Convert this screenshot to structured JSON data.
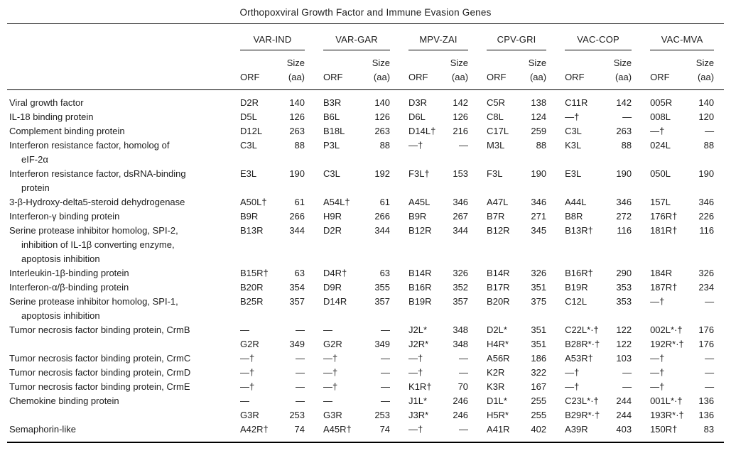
{
  "title": "Orthopoxviral Growth Factor and Immune Evasion Genes",
  "table": {
    "groups": [
      "VAR-IND",
      "VAR-GAR",
      "MPV-ZAI",
      "CPV-GRI",
      "VAC-COP",
      "VAC-MVA"
    ],
    "subheader": {
      "orf": "ORF",
      "size_line1": "Size",
      "size_line2": "(aa)"
    },
    "rows": [
      {
        "label_lines": [
          "Viral growth factor"
        ],
        "cells": [
          "D2R",
          "140",
          "B3R",
          "140",
          "D3R",
          "142",
          "C5R",
          "138",
          "C11R",
          "142",
          "005R",
          "140"
        ]
      },
      {
        "label_lines": [
          "IL-18 binding protein"
        ],
        "cells": [
          "D5L",
          "126",
          "B6L",
          "126",
          "D6L",
          "126",
          "C8L",
          "124",
          "—†",
          "—",
          "008L",
          "120"
        ]
      },
      {
        "label_lines": [
          "Complement binding protein"
        ],
        "cells": [
          "D12L",
          "263",
          "B18L",
          "263",
          "D14L†",
          "216",
          "C17L",
          "259",
          "C3L",
          "263",
          "—†",
          "—"
        ]
      },
      {
        "label_lines": [
          "Interferon resistance factor, homolog of",
          "eIF-2α"
        ],
        "cells": [
          "C3L",
          "88",
          "P3L",
          "88",
          "—†",
          "—",
          "M3L",
          "88",
          "K3L",
          "88",
          "024L",
          "88"
        ]
      },
      {
        "label_lines": [
          "Interferon resistance factor, dsRNA-binding",
          "protein"
        ],
        "cells": [
          "E3L",
          "190",
          "C3L",
          "192",
          "F3L†",
          "153",
          "F3L",
          "190",
          "E3L",
          "190",
          "050L",
          "190"
        ]
      },
      {
        "label_lines": [
          "3-β-Hydroxy-delta5-steroid dehydrogenase"
        ],
        "cells": [
          "A50L†",
          "61",
          "A54L†",
          "61",
          "A45L",
          "346",
          "A47L",
          "346",
          "A44L",
          "346",
          "157L",
          "346"
        ]
      },
      {
        "label_lines": [
          "Interferon-γ binding protein"
        ],
        "cells": [
          "B9R",
          "266",
          "H9R",
          "266",
          "B9R",
          "267",
          "B7R",
          "271",
          "B8R",
          "272",
          "176R†",
          "226"
        ]
      },
      {
        "label_lines": [
          "Serine protease inhibitor homolog, SPI-2,",
          "inhibition of IL-1β converting enzyme,",
          "apoptosis inhibition"
        ],
        "cells": [
          "B13R",
          "344",
          "D2R",
          "344",
          "B12R",
          "344",
          "B12R",
          "345",
          "B13R†",
          "116",
          "181R†",
          "116"
        ]
      },
      {
        "label_lines": [
          "Interleukin-1β-binding protein"
        ],
        "cells": [
          "B15R†",
          "63",
          "D4R†",
          "63",
          "B14R",
          "326",
          "B14R",
          "326",
          "B16R†",
          "290",
          "184R",
          "326"
        ]
      },
      {
        "label_lines": [
          "Interferon-α/β-binding protein"
        ],
        "cells": [
          "B20R",
          "354",
          "D9R",
          "355",
          "B16R",
          "352",
          "B17R",
          "351",
          "B19R",
          "353",
          "187R†",
          "234"
        ]
      },
      {
        "label_lines": [
          "Serine protease inhibitor homolog, SPI-1,",
          "apoptosis inhibition"
        ],
        "cells": [
          "B25R",
          "357",
          "D14R",
          "357",
          "B19R",
          "357",
          "B20R",
          "375",
          "C12L",
          "353",
          "—†",
          "—"
        ]
      },
      {
        "label_lines": [
          "Tumor necrosis factor binding protein, CrmB"
        ],
        "cells": [
          "—",
          "—",
          "—",
          "—",
          "J2L*",
          "348",
          "D2L*",
          "351",
          "C22L*·†",
          "122",
          "002L*·†",
          "176"
        ]
      },
      {
        "label_lines": [
          ""
        ],
        "cells": [
          "G2R",
          "349",
          "G2R",
          "349",
          "J2R*",
          "348",
          "H4R*",
          "351",
          "B28R*·†",
          "122",
          "192R*·†",
          "176"
        ]
      },
      {
        "label_lines": [
          "Tumor necrosis factor binding protein, CrmC"
        ],
        "cells": [
          "—†",
          "—",
          "—†",
          "—",
          "—†",
          "—",
          "A56R",
          "186",
          "A53R†",
          "103",
          "—†",
          "—"
        ]
      },
      {
        "label_lines": [
          "Tumor necrosis factor binding protein, CrmD"
        ],
        "cells": [
          "—†",
          "—",
          "—†",
          "—",
          "—†",
          "—",
          "K2R",
          "322",
          "—†",
          "—",
          "—†",
          "—"
        ]
      },
      {
        "label_lines": [
          "Tumor necrosis factor binding protein, CrmE"
        ],
        "cells": [
          "—†",
          "—",
          "—†",
          "—",
          "K1R†",
          "70",
          "K3R",
          "167",
          "—†",
          "—",
          "—†",
          "—"
        ]
      },
      {
        "label_lines": [
          "Chemokine binding protein"
        ],
        "cells": [
          "—",
          "—",
          "—",
          "—",
          "J1L*",
          "246",
          "D1L*",
          "255",
          "C23L*·†",
          "244",
          "001L*·†",
          "136"
        ]
      },
      {
        "label_lines": [
          ""
        ],
        "cells": [
          "G3R",
          "253",
          "G3R",
          "253",
          "J3R*",
          "246",
          "H5R*",
          "255",
          "B29R*·†",
          "244",
          "193R*·†",
          "136"
        ]
      },
      {
        "label_lines": [
          "Semaphorin-like"
        ],
        "cells": [
          "A42R†",
          "74",
          "A45R†",
          "74",
          "—†",
          "—",
          "A41R",
          "402",
          "A39R",
          "403",
          "150R†",
          "83"
        ]
      }
    ]
  }
}
